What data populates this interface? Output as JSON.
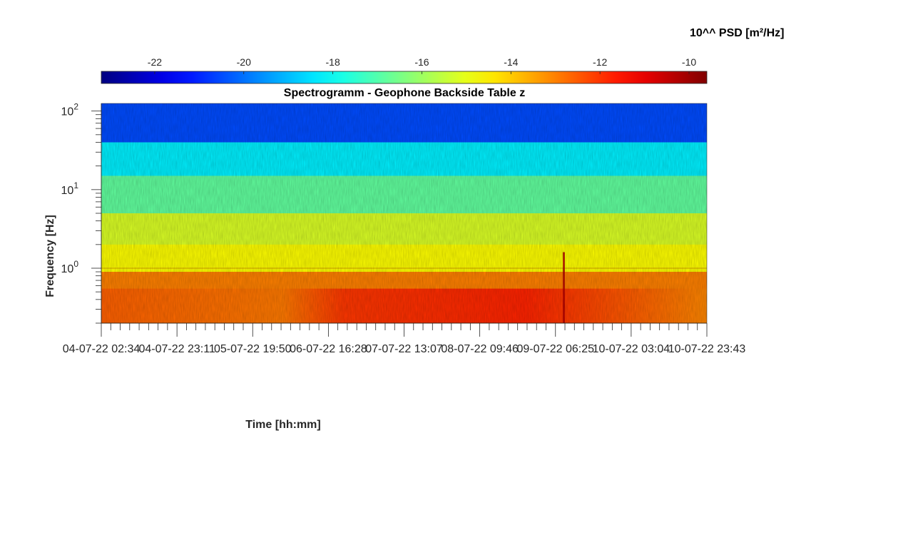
{
  "chart_data": {
    "type": "heatmap",
    "title": "Spectrogramm - Geophone Backside Table z",
    "xlabel": "Time [hh:mm]",
    "ylabel": "Frequency [Hz]",
    "colorbar": {
      "label": "10^^ PSD [m²/Hz]",
      "range": [
        -23.2,
        -9.6
      ],
      "ticks": [
        -22,
        -20,
        -18,
        -16,
        -14,
        -12,
        -10
      ],
      "tick_labels": [
        "-22",
        "-20",
        "-18",
        "-16",
        "-14",
        "-12",
        "-10"
      ],
      "colormap": "jet"
    },
    "x_tick_labels": [
      "04-07-22 02:34",
      "04-07-22 23:11",
      "05-07-22 19:50",
      "06-07-22 16:28",
      "07-07-22 13:07",
      "08-07-22 09:46",
      "09-07-22 06:25",
      "10-07-22 03:04",
      "10-07-22 23:43"
    ],
    "y_scale": "log",
    "ylim": [
      0.2,
      125
    ],
    "y_ticks": [
      1,
      10,
      100
    ],
    "y_tick_labels": [
      {
        "base": "10",
        "exp": "0"
      },
      {
        "base": "10",
        "exp": "1"
      },
      {
        "base": "10",
        "exp": "2"
      }
    ],
    "bands": [
      {
        "freq_range": [
          40,
          125
        ],
        "log_psd": -20.5
      },
      {
        "freq_range": [
          15,
          40
        ],
        "log_psd": -18.3
      },
      {
        "freq_range": [
          5,
          15
        ],
        "log_psd": -16.8
      },
      {
        "freq_range": [
          2,
          5
        ],
        "log_psd": -15.2
      },
      {
        "freq_range": [
          0.9,
          2
        ],
        "log_psd": -14.7
      },
      {
        "freq_range": [
          0.2,
          0.9
        ],
        "log_psd": -13.0
      }
    ]
  }
}
